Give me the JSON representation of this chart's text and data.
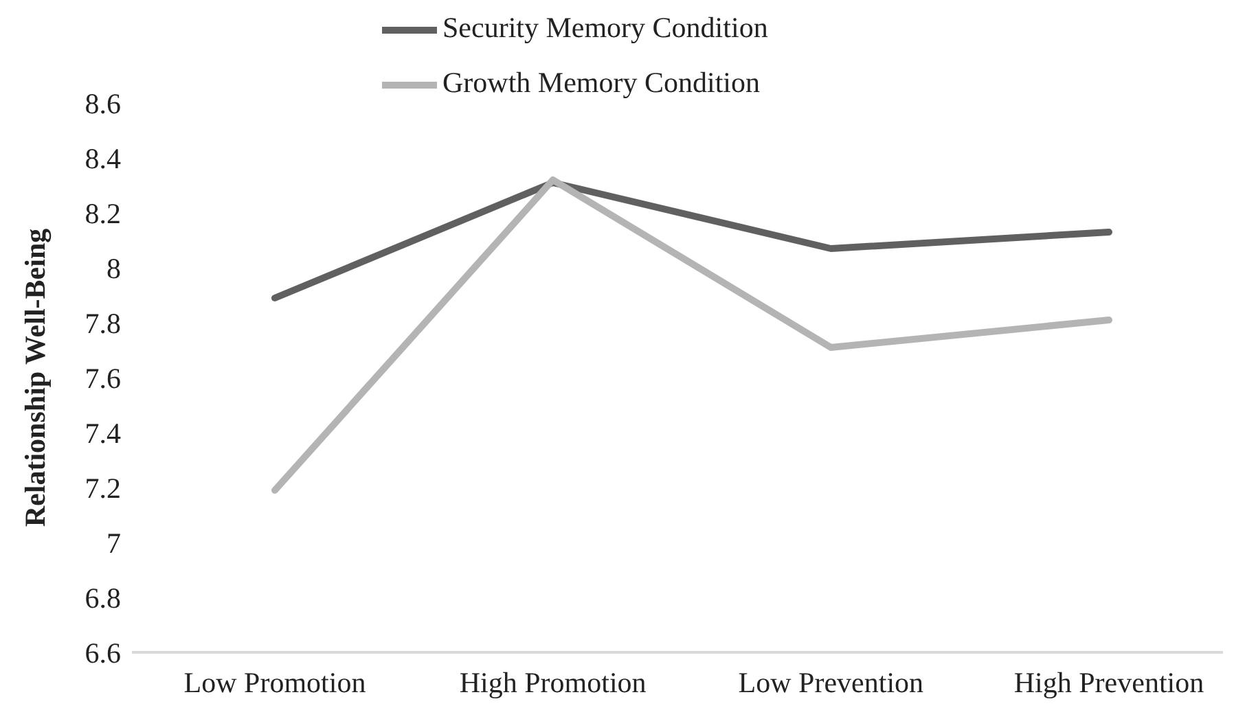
{
  "chart_data": {
    "type": "line",
    "ylabel": "Relationship Well-Being",
    "categories": [
      "Low Promotion",
      "High Promotion",
      "Low Prevention",
      "High Prevention"
    ],
    "series": [
      {
        "name": "Security Memory Condition",
        "color": "#606060",
        "values": [
          7.89,
          8.31,
          8.07,
          8.13
        ]
      },
      {
        "name": "Growth Memory Condition",
        "color": "#b4b4b4",
        "values": [
          7.19,
          8.32,
          7.71,
          7.81
        ]
      }
    ],
    "ylim": [
      6.6,
      8.6
    ],
    "yticks": [
      6.6,
      6.8,
      7,
      7.2,
      7.4,
      7.6,
      7.8,
      8,
      8.2,
      8.4,
      8.6
    ],
    "grid": false,
    "legend": "top",
    "marker": "none",
    "line_style": "solid"
  }
}
